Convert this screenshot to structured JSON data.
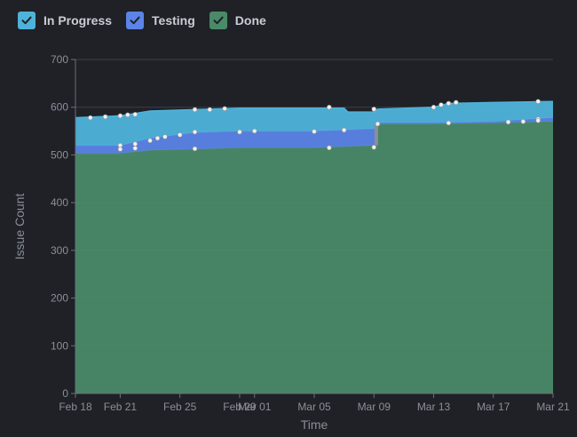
{
  "legend": [
    {
      "key": "in_progress",
      "label": "In Progress",
      "color": "#4fb3d9"
    },
    {
      "key": "testing",
      "label": "Testing",
      "color": "#5b84e6"
    },
    {
      "key": "done",
      "label": "Done",
      "color": "#4a8a68"
    }
  ],
  "chart_data": {
    "type": "area",
    "stacked": true,
    "xlabel": "Time",
    "ylabel": "Issue Count",
    "ylim": [
      0,
      700
    ],
    "yticks": [
      0,
      100,
      200,
      300,
      400,
      500,
      600,
      700
    ],
    "xlim": [
      "2024-02-18",
      "2024-03-21"
    ],
    "xticks": [
      {
        "date": "2024-02-18",
        "label": "Feb 18"
      },
      {
        "date": "2024-02-21",
        "label": "Feb 21"
      },
      {
        "date": "2024-02-25",
        "label": "Feb 25"
      },
      {
        "date": "2024-02-29",
        "label": "Feb 29"
      },
      {
        "date": "2024-03-01",
        "label": "Mar 01"
      },
      {
        "date": "2024-03-05",
        "label": "Mar 05"
      },
      {
        "date": "2024-03-09",
        "label": "Mar 09"
      },
      {
        "date": "2024-03-13",
        "label": "Mar 13"
      },
      {
        "date": "2024-03-17",
        "label": "Mar 17"
      },
      {
        "date": "2024-03-21",
        "label": "Mar 21"
      }
    ],
    "grid": true,
    "series": [
      {
        "name": "Done",
        "color": "#4a8a68",
        "points": [
          [
            "2024-02-18",
            503
          ],
          [
            "2024-02-21",
            503
          ],
          [
            "2024-02-23",
            510
          ],
          [
            "2024-02-26",
            512
          ],
          [
            "2024-02-29",
            515
          ],
          [
            "2024-03-05",
            515
          ],
          [
            "2024-03-09",
            520
          ],
          [
            "2024-03-09 06:00",
            565
          ],
          [
            "2024-03-13",
            565
          ],
          [
            "2024-03-17",
            567
          ],
          [
            "2024-03-21",
            570
          ]
        ]
      },
      {
        "name": "Testing",
        "color": "#5b84e6",
        "points": [
          [
            "2024-02-18",
            520
          ],
          [
            "2024-02-21",
            520
          ],
          [
            "2024-02-23",
            535
          ],
          [
            "2024-02-26",
            547
          ],
          [
            "2024-02-29",
            550
          ],
          [
            "2024-03-05",
            550
          ],
          [
            "2024-03-09",
            555
          ],
          [
            "2024-03-09 06:00",
            568
          ],
          [
            "2024-03-13",
            568
          ],
          [
            "2024-03-17",
            570
          ],
          [
            "2024-03-21",
            578
          ]
        ]
      },
      {
        "name": "In Progress",
        "color": "#4fb3d9",
        "points": [
          [
            "2024-02-18",
            578
          ],
          [
            "2024-02-21",
            582
          ],
          [
            "2024-02-23",
            592
          ],
          [
            "2024-02-26",
            595
          ],
          [
            "2024-02-29",
            598
          ],
          [
            "2024-03-05",
            598
          ],
          [
            "2024-03-07",
            598
          ],
          [
            "2024-03-07 06:00",
            590
          ],
          [
            "2024-03-09",
            590
          ],
          [
            "2024-03-09 06:00",
            596
          ],
          [
            "2024-03-13",
            600
          ],
          [
            "2024-03-14",
            608
          ],
          [
            "2024-03-17",
            610
          ],
          [
            "2024-03-21",
            612
          ]
        ]
      }
    ],
    "markers": [
      [
        "2024-02-19",
        578
      ],
      [
        "2024-02-20",
        580
      ],
      [
        "2024-02-21",
        582
      ],
      [
        "2024-02-21 12:00",
        584
      ],
      [
        "2024-02-22",
        585
      ],
      [
        "2024-02-26",
        595
      ],
      [
        "2024-02-27",
        595
      ],
      [
        "2024-02-28",
        597
      ],
      [
        "2024-03-06",
        600
      ],
      [
        "2024-03-09",
        596
      ],
      [
        "2024-03-13",
        600
      ],
      [
        "2024-03-13 12:00",
        605
      ],
      [
        "2024-03-14",
        608
      ],
      [
        "2024-03-14 12:00",
        610
      ],
      [
        "2024-03-20",
        612
      ],
      [
        "2024-02-21",
        520
      ],
      [
        "2024-02-22",
        523
      ],
      [
        "2024-02-23",
        530
      ],
      [
        "2024-02-23 12:00",
        535
      ],
      [
        "2024-02-24",
        538
      ],
      [
        "2024-02-25",
        542
      ],
      [
        "2024-02-26",
        548
      ],
      [
        "2024-02-29",
        548
      ],
      [
        "2024-03-01",
        550
      ],
      [
        "2024-03-05",
        549
      ],
      [
        "2024-03-07",
        552
      ],
      [
        "2024-03-09 06:00",
        565
      ],
      [
        "2024-03-14",
        567
      ],
      [
        "2024-03-19",
        570
      ],
      [
        "2024-03-20",
        575
      ],
      [
        "2024-02-21",
        512
      ],
      [
        "2024-02-22",
        514
      ],
      [
        "2024-02-26",
        513
      ],
      [
        "2024-03-06",
        515
      ],
      [
        "2024-03-09",
        516
      ],
      [
        "2024-03-18",
        569
      ],
      [
        "2024-03-20",
        572
      ]
    ]
  }
}
